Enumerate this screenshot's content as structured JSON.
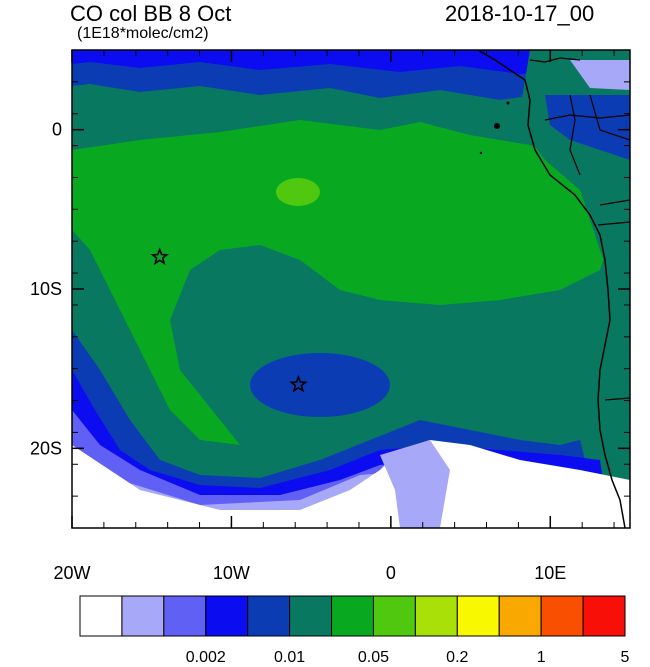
{
  "header": {
    "title": "CO col BB 8 Oct",
    "units": "(1E18*molec/cm2)",
    "timestamp": "2018-10-17_00"
  },
  "map": {
    "region": "South Atlantic / West Africa",
    "projection": "lat-lon",
    "lon_range": [
      -20,
      15
    ],
    "lat_range": [
      -25,
      5
    ],
    "x_ticks": [
      {
        "value": -20,
        "label": "20W"
      },
      {
        "value": -10,
        "label": "10W"
      },
      {
        "value": 0,
        "label": "0"
      },
      {
        "value": 10,
        "label": "10E"
      }
    ],
    "y_ticks": [
      {
        "value": 0,
        "label": "0"
      },
      {
        "value": -10,
        "label": "10S"
      },
      {
        "value": -20,
        "label": "20S"
      }
    ],
    "markers": [
      {
        "name": "star-marker-west",
        "lon": -14.5,
        "lat": -8.0
      },
      {
        "name": "star-marker-south",
        "lon": -5.8,
        "lat": -16.0
      }
    ]
  },
  "colorbar": {
    "colors": [
      "#ffffff",
      "#a8a8f8",
      "#6060f4",
      "#0c0cf0",
      "#0c3cb4",
      "#087860",
      "#08a820",
      "#50c810",
      "#a8e008",
      "#f8f800",
      "#f8a800",
      "#f85000",
      "#f81008"
    ],
    "labels": [
      "0.002",
      "0.01",
      "0.05",
      "0.2",
      "1",
      "5"
    ]
  }
}
